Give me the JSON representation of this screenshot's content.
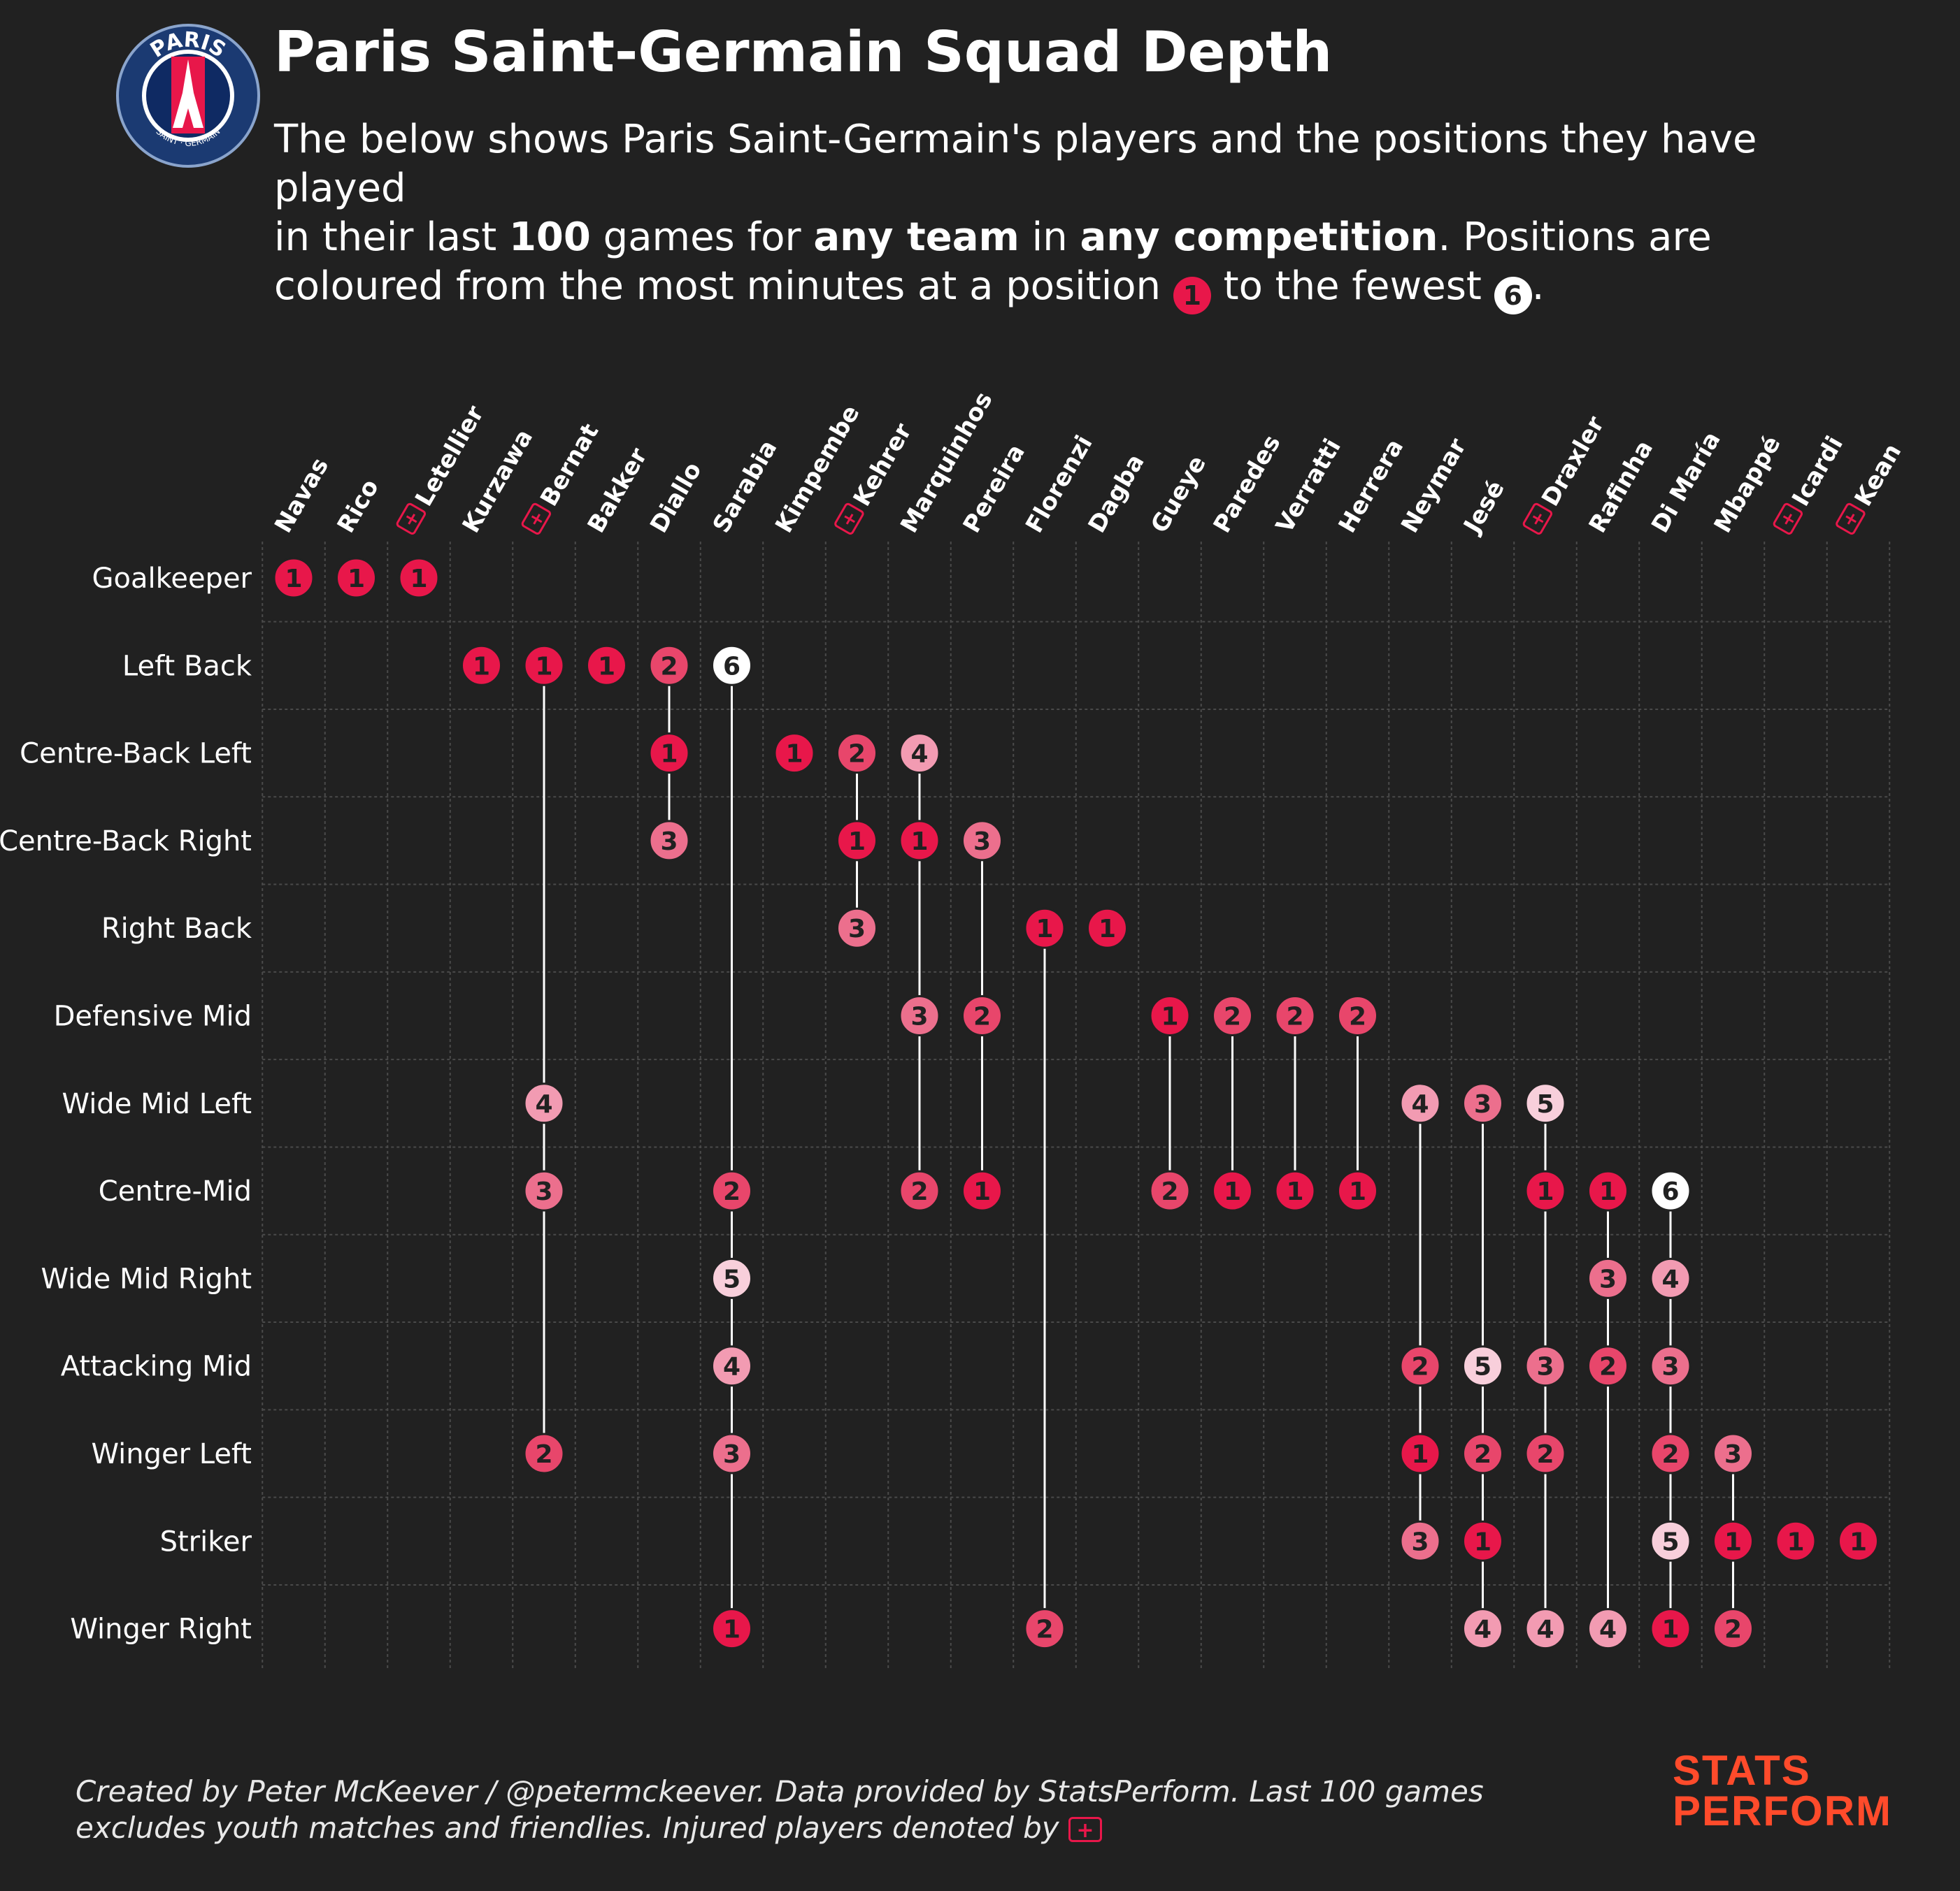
{
  "header": {
    "title": "Paris Saint-Germain Squad Depth",
    "sub1": "The below shows Paris Saint-Germain's players and the positions they have played",
    "sub2a": "in their last ",
    "sub2b": "100",
    "sub2c": " games for ",
    "sub2d": "any team",
    "sub2e": " in ",
    "sub2f": "any competition",
    "sub2g": ". Positions are",
    "sub3a": "coloured from the most minutes at a position ",
    "sub3b": " to the fewest ",
    "sub3c": ".",
    "legend_most": "1",
    "legend_fewest": "6"
  },
  "badge": {
    "top_text": "PARIS",
    "bottom_text": "SAINT · GERMAIN"
  },
  "footer": {
    "line1": "Created by Peter McKeever / @petermckeever. Data provided by StatsPerform. Last 100 games",
    "line2": "excludes youth matches and friendlies. Injured players denoted by"
  },
  "logo": {
    "line1": "STATS",
    "line2": "PERFORM"
  },
  "colors": {
    "background": "#212121",
    "rank_1": "#e8174a",
    "rank_2": "#e8466b",
    "rank_3": "#ec6f8d",
    "rank_4": "#f29bb2",
    "rank_5": "#f8cfdb",
    "rank_6": "#ffffff"
  },
  "chart_data": {
    "type": "scatter",
    "title": "Paris Saint-Germain Squad Depth",
    "players": [
      "Navas",
      "Rico",
      "Letellier",
      "Kurzawa",
      "Bernat",
      "Bakker",
      "Diallo",
      "Sarabia",
      "Kimpembe",
      "Kehrer",
      "Marquinhos",
      "Pereira",
      "Florenzi",
      "Dagba",
      "Gueye",
      "Paredes",
      "Verratti",
      "Herrera",
      "Neymar",
      "Jesé",
      "Draxler",
      "Rafinha",
      "Di María",
      "Mbappé",
      "Icardi",
      "Kean"
    ],
    "injured": [
      "Letellier",
      "Bernat",
      "Kehrer",
      "Draxler",
      "Icardi",
      "Kean"
    ],
    "positions": [
      "Goalkeeper",
      "Left Back",
      "Centre-Back Left",
      "Centre-Back Right",
      "Right Back",
      "Defensive Mid",
      "Wide Mid Left",
      "Centre-Mid",
      "Wide Mid Right",
      "Attacking Mid",
      "Winger Left",
      "Striker",
      "Winger Right"
    ],
    "rank_scale": "1 = most minutes at a position, 6 = fewest",
    "player_positions": [
      {
        "player": "Navas",
        "ranks": {
          "Goalkeeper": 1
        }
      },
      {
        "player": "Rico",
        "ranks": {
          "Goalkeeper": 1
        }
      },
      {
        "player": "Letellier",
        "ranks": {
          "Goalkeeper": 1
        }
      },
      {
        "player": "Kurzawa",
        "ranks": {
          "Left Back": 1
        }
      },
      {
        "player": "Bernat",
        "ranks": {
          "Left Back": 1,
          "Wide Mid Left": 4,
          "Centre-Mid": 3,
          "Winger Left": 2
        }
      },
      {
        "player": "Bakker",
        "ranks": {
          "Left Back": 1
        }
      },
      {
        "player": "Diallo",
        "ranks": {
          "Left Back": 2,
          "Centre-Back Left": 1,
          "Centre-Back Right": 3
        }
      },
      {
        "player": "Sarabia",
        "ranks": {
          "Left Back": 6,
          "Centre-Mid": 2,
          "Wide Mid Right": 5,
          "Attacking Mid": 4,
          "Winger Left": 3,
          "Winger Right": 1
        }
      },
      {
        "player": "Kimpembe",
        "ranks": {
          "Centre-Back Left": 1
        }
      },
      {
        "player": "Kehrer",
        "ranks": {
          "Centre-Back Left": 2,
          "Centre-Back Right": 1,
          "Right Back": 3
        }
      },
      {
        "player": "Marquinhos",
        "ranks": {
          "Centre-Back Left": 4,
          "Centre-Back Right": 1,
          "Defensive Mid": 3,
          "Centre-Mid": 2
        }
      },
      {
        "player": "Pereira",
        "ranks": {
          "Centre-Back Right": 3,
          "Defensive Mid": 2,
          "Centre-Mid": 1
        }
      },
      {
        "player": "Florenzi",
        "ranks": {
          "Right Back": 1,
          "Winger Right": 2
        }
      },
      {
        "player": "Dagba",
        "ranks": {
          "Right Back": 1
        }
      },
      {
        "player": "Gueye",
        "ranks": {
          "Defensive Mid": 1,
          "Centre-Mid": 2
        }
      },
      {
        "player": "Paredes",
        "ranks": {
          "Defensive Mid": 2,
          "Centre-Mid": 1
        }
      },
      {
        "player": "Verratti",
        "ranks": {
          "Defensive Mid": 2,
          "Centre-Mid": 1
        }
      },
      {
        "player": "Herrera",
        "ranks": {
          "Defensive Mid": 2,
          "Centre-Mid": 1
        }
      },
      {
        "player": "Neymar",
        "ranks": {
          "Wide Mid Left": 4,
          "Attacking Mid": 2,
          "Winger Left": 1,
          "Striker": 3
        }
      },
      {
        "player": "Jesé",
        "ranks": {
          "Wide Mid Left": 3,
          "Attacking Mid": 5,
          "Winger Left": 2,
          "Striker": 1,
          "Winger Right": 4
        }
      },
      {
        "player": "Draxler",
        "ranks": {
          "Wide Mid Left": 5,
          "Centre-Mid": 1,
          "Attacking Mid": 3,
          "Winger Left": 2,
          "Winger Right": 4
        }
      },
      {
        "player": "Rafinha",
        "ranks": {
          "Centre-Mid": 1,
          "Wide Mid Right": 3,
          "Attacking Mid": 2,
          "Winger Right": 4
        }
      },
      {
        "player": "Di María",
        "ranks": {
          "Centre-Mid": 6,
          "Wide Mid Right": 4,
          "Attacking Mid": 3,
          "Winger Left": 2,
          "Striker": 5,
          "Winger Right": 1
        }
      },
      {
        "player": "Mbappé",
        "ranks": {
          "Winger Left": 3,
          "Striker": 1,
          "Winger Right": 2
        }
      },
      {
        "player": "Icardi",
        "ranks": {
          "Striker": 1
        }
      },
      {
        "player": "Kean",
        "ranks": {
          "Striker": 1
        }
      }
    ]
  }
}
